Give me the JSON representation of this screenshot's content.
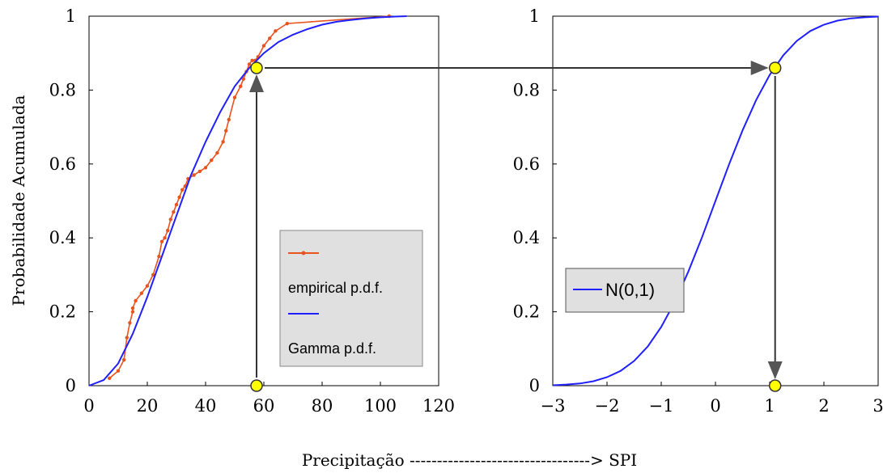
{
  "chart_data": [
    {
      "type": "line",
      "ylabel": "Probabilidade Acumulada",
      "xlim": [
        0,
        120
      ],
      "ylim": [
        0,
        1
      ],
      "x_ticks": [
        "0",
        "20",
        "40",
        "60",
        "80",
        "100",
        "120"
      ],
      "y_ticks": [
        "0",
        "0.2",
        "0.4",
        "0.6",
        "0.8",
        "1"
      ],
      "legend_placement": "center-right",
      "series": [
        {
          "name": "empirical p.d.f.",
          "color": "#e8531e",
          "marker": "dot",
          "x": [
            7,
            10,
            12,
            13,
            14,
            15,
            15,
            16,
            18,
            20,
            22,
            24,
            25,
            26,
            27,
            28,
            29,
            30,
            31,
            32,
            33,
            34,
            36,
            38,
            40,
            42,
            44,
            46,
            47,
            48,
            50,
            52,
            53,
            54,
            55,
            56,
            57,
            58,
            60,
            62,
            64,
            68,
            103
          ],
          "y": [
            0.02,
            0.04,
            0.07,
            0.13,
            0.17,
            0.2,
            0.21,
            0.23,
            0.25,
            0.27,
            0.3,
            0.35,
            0.39,
            0.4,
            0.42,
            0.45,
            0.47,
            0.49,
            0.51,
            0.53,
            0.54,
            0.56,
            0.57,
            0.58,
            0.59,
            0.61,
            0.63,
            0.66,
            0.69,
            0.72,
            0.78,
            0.81,
            0.83,
            0.85,
            0.87,
            0.88,
            0.88,
            0.89,
            0.92,
            0.94,
            0.96,
            0.98,
            1.0
          ]
        },
        {
          "name": "Gamma p.d.f.",
          "color": "#2020ff",
          "x": [
            0,
            5,
            10,
            15,
            20,
            25,
            30,
            35,
            40,
            45,
            50,
            55,
            60,
            65,
            70,
            75,
            80,
            85,
            90,
            95,
            100,
            105,
            109
          ],
          "y": [
            0,
            0.015,
            0.06,
            0.14,
            0.24,
            0.35,
            0.46,
            0.57,
            0.66,
            0.74,
            0.81,
            0.86,
            0.9,
            0.93,
            0.95,
            0.965,
            0.977,
            0.985,
            0.99,
            0.994,
            0.997,
            0.999,
            1.0
          ]
        }
      ],
      "highlight_point": {
        "x": 57.5,
        "y": 0.86
      }
    },
    {
      "type": "line",
      "xlim": [
        -3,
        3
      ],
      "ylim": [
        0,
        1
      ],
      "x_ticks": [
        "−3",
        "−2",
        "−1",
        "0",
        "1",
        "2",
        "3"
      ],
      "y_ticks": [
        "0",
        "0.2",
        "0.4",
        "0.6",
        "0.8",
        "1"
      ],
      "legend_placement": "center-left",
      "series": [
        {
          "name": "N(0,1)",
          "color": "#2020ff",
          "x": [
            -3,
            -2.75,
            -2.5,
            -2.25,
            -2,
            -1.75,
            -1.5,
            -1.25,
            -1,
            -0.75,
            -0.5,
            -0.25,
            0,
            0.25,
            0.5,
            0.75,
            1,
            1.25,
            1.5,
            1.75,
            2,
            2.25,
            2.5,
            2.75,
            3
          ],
          "y": [
            0.001,
            0.003,
            0.006,
            0.012,
            0.023,
            0.04,
            0.067,
            0.106,
            0.159,
            0.227,
            0.309,
            0.401,
            0.5,
            0.599,
            0.691,
            0.773,
            0.841,
            0.894,
            0.933,
            0.96,
            0.977,
            0.988,
            0.994,
            0.997,
            0.999
          ]
        }
      ],
      "highlight_point": {
        "x": 1.1,
        "y": 0.86
      }
    }
  ],
  "x_caption": "Precipitação ---------------------------------> SPI",
  "colors": {
    "empirical": "#e8531e",
    "gamma": "#2020ff",
    "normal": "#2020ff",
    "legend_bg": "#e0e0e0",
    "marker_fill": "#ffff00",
    "arrow": "#333333"
  }
}
